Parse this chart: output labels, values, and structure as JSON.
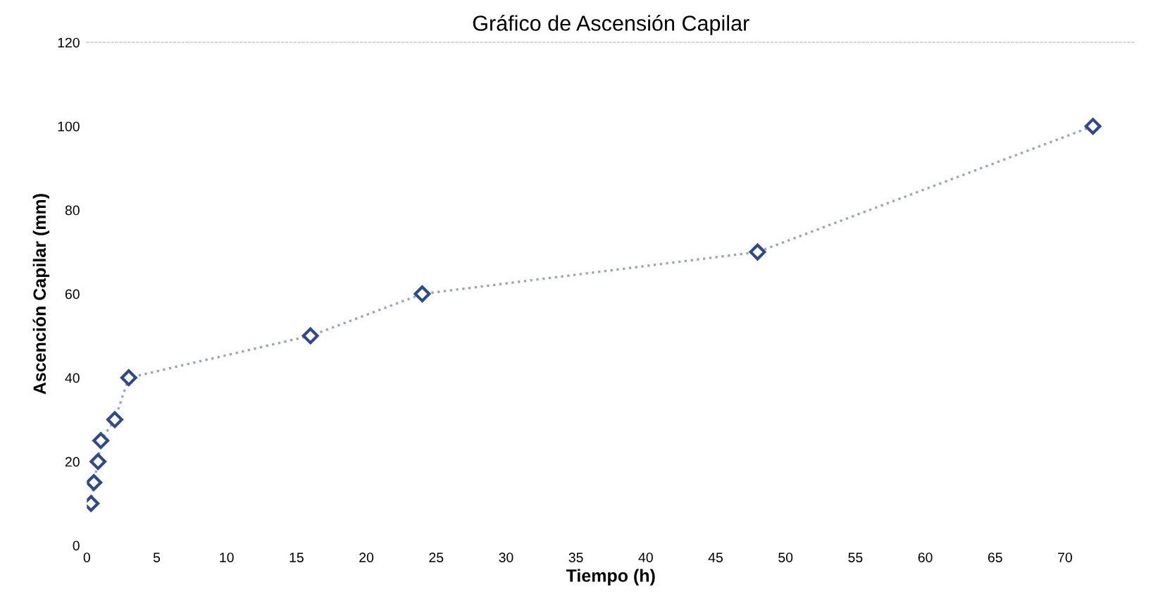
{
  "chart_data": {
    "type": "line",
    "title": "Gráfico de Ascensión Capilar",
    "xlabel": "Tiempo (h)",
    "ylabel": "Ascención Capilar (mm)",
    "x": [
      0.3,
      0.5,
      0.8,
      1,
      2,
      3,
      16,
      24,
      48,
      72
    ],
    "series": [
      {
        "color": "#2e4a8c",
        "values": [
          10,
          15,
          20,
          25,
          30,
          40,
          50,
          60,
          70,
          100
        ]
      }
    ],
    "xlim": [
      0,
      75
    ],
    "xticks": [
      0,
      5,
      10,
      15,
      20,
      25,
      30,
      35,
      40,
      45,
      50,
      55,
      60,
      65,
      70
    ],
    "ylim": [
      0,
      120
    ],
    "yticks": [
      0,
      20,
      40,
      60,
      80,
      100,
      120
    ],
    "marker": "diamond",
    "line_style": "dotted",
    "grid": false,
    "legend": false
  }
}
